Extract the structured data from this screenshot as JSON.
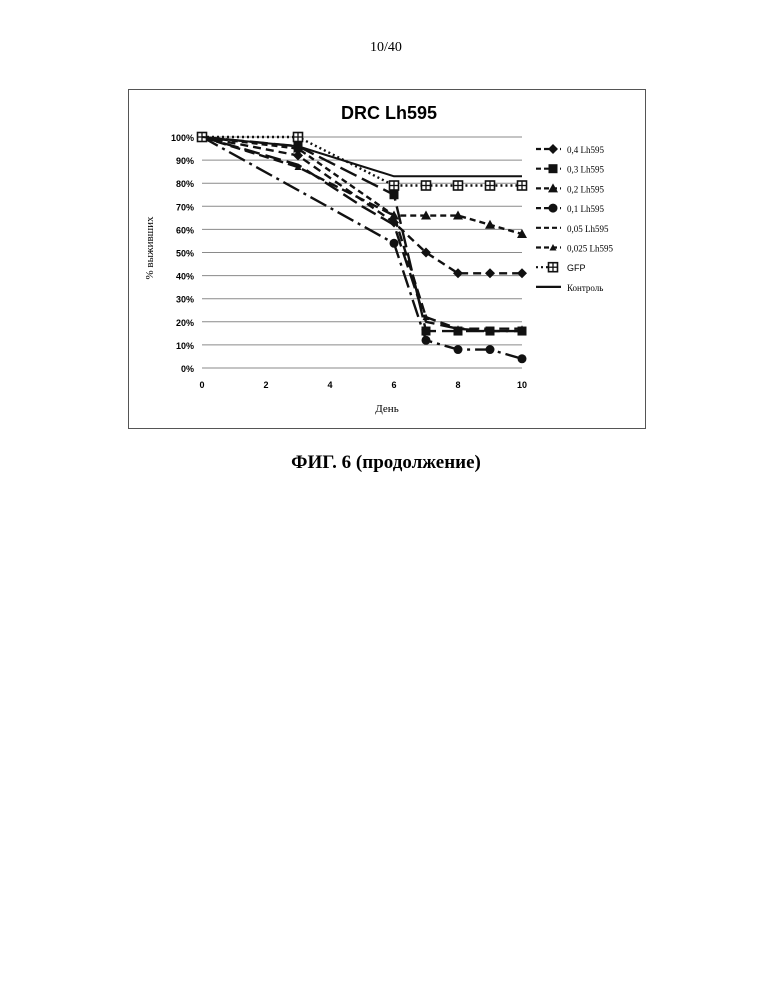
{
  "page_number": "10/40",
  "figure_caption": "ФИГ. 6 (продолжение)",
  "chart_data": {
    "type": "line",
    "title": "DRC Lh595",
    "xlabel": "День",
    "ylabel": "% выживших",
    "xlim": [
      0,
      10
    ],
    "ylim": [
      0,
      100
    ],
    "x_ticks": [
      "0",
      "2",
      "4",
      "6",
      "8",
      "10"
    ],
    "y_ticks": [
      "0%",
      "10%",
      "20%",
      "30%",
      "40%",
      "50%",
      "60%",
      "70%",
      "80%",
      "90%",
      "100%"
    ],
    "grid": "horizontal",
    "legend_position": "right",
    "series": [
      {
        "name": "0,4 Lh595",
        "marker": "diamond",
        "dash": "8,5",
        "x": [
          0,
          3,
          6,
          7,
          8,
          9,
          10
        ],
        "y": [
          100,
          92,
          63,
          50,
          41,
          41,
          41
        ]
      },
      {
        "name": "0,3 Lh595",
        "marker": "square",
        "dash": "18,6",
        "x": [
          0,
          3,
          6,
          7,
          8,
          9,
          10
        ],
        "y": [
          100,
          96,
          75,
          16,
          16,
          16,
          16
        ]
      },
      {
        "name": "0,2 Lh595",
        "marker": "triangle",
        "dash": "6,4",
        "x": [
          0,
          3,
          6,
          7,
          8,
          9,
          10
        ],
        "y": [
          100,
          95,
          66,
          66,
          66,
          62,
          58
        ]
      },
      {
        "name": "0,1 Lh595",
        "marker": "circle",
        "dash": "18,5,3,5",
        "x": [
          0,
          6,
          7,
          8,
          9,
          10
        ],
        "y": [
          100,
          54,
          12,
          8,
          8,
          4
        ]
      },
      {
        "name": "0,05 Lh595",
        "marker": "none",
        "dash": "16,6",
        "x": [
          0,
          3,
          5,
          6,
          7,
          8,
          9,
          10
        ],
        "y": [
          100,
          88,
          70,
          62,
          20,
          17,
          16,
          16
        ]
      },
      {
        "name": "0,025 Lh595",
        "marker": "triangle-small",
        "dash": "10,5",
        "x": [
          0,
          3,
          6,
          7,
          8,
          10
        ],
        "y": [
          100,
          87,
          66,
          22,
          17,
          17
        ]
      },
      {
        "name": "GFP",
        "marker": "hatched-square",
        "dash": "2,3",
        "x": [
          0,
          3,
          6,
          7,
          8,
          9,
          10
        ],
        "y": [
          100,
          100,
          79,
          79,
          79,
          79,
          79
        ]
      },
      {
        "name": "Контроль",
        "marker": "none",
        "dash": "",
        "x": [
          0,
          3,
          6,
          7,
          8,
          9,
          10
        ],
        "y": [
          100,
          96,
          83,
          83,
          83,
          83,
          83
        ]
      }
    ]
  }
}
